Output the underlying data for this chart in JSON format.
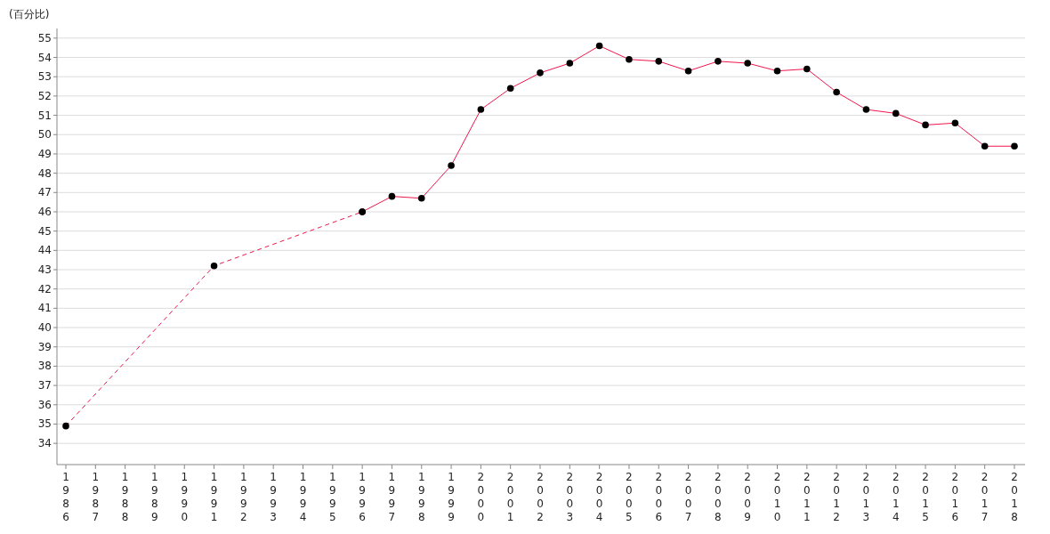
{
  "chart_data": {
    "type": "line",
    "ylabel": "(百分比)",
    "categories": [
      "1986",
      "1987",
      "1988",
      "1989",
      "1990",
      "1991",
      "1992",
      "1993",
      "1994",
      "1995",
      "1996",
      "1997",
      "1998",
      "1999",
      "2000",
      "2001",
      "2002",
      "2003",
      "2004",
      "2005",
      "2006",
      "2007",
      "2008",
      "2009",
      "2010",
      "2011",
      "2012",
      "2013",
      "2014",
      "2015",
      "2016",
      "2017",
      "2018"
    ],
    "ylim": [
      32.9,
      55.5
    ],
    "yticks": [
      34,
      35,
      36,
      37,
      38,
      39,
      40,
      41,
      42,
      43,
      44,
      45,
      46,
      47,
      48,
      49,
      50,
      51,
      52,
      53,
      54,
      55
    ],
    "grid": "y",
    "marker": "circle",
    "series": [
      {
        "color": "#f0164c",
        "line_style": "solid",
        "values": [
          null,
          null,
          null,
          null,
          null,
          null,
          null,
          null,
          null,
          null,
          46.0,
          46.8,
          46.7,
          48.4,
          51.3,
          52.4,
          53.2,
          53.7,
          54.6,
          53.9,
          53.8,
          53.3,
          53.8,
          53.7,
          53.3,
          53.4,
          52.2,
          51.3,
          51.1,
          50.5,
          50.6,
          49.4,
          49.4
        ]
      },
      {
        "color": "#f0164c",
        "line_style": "dashed",
        "values": [
          34.9,
          null,
          null,
          null,
          null,
          43.2,
          null,
          null,
          null,
          null,
          46.0,
          null,
          null,
          null,
          null,
          null,
          null,
          null,
          null,
          null,
          null,
          null,
          null,
          null,
          null,
          null,
          null,
          null,
          null,
          null,
          null,
          null,
          null
        ]
      }
    ]
  }
}
